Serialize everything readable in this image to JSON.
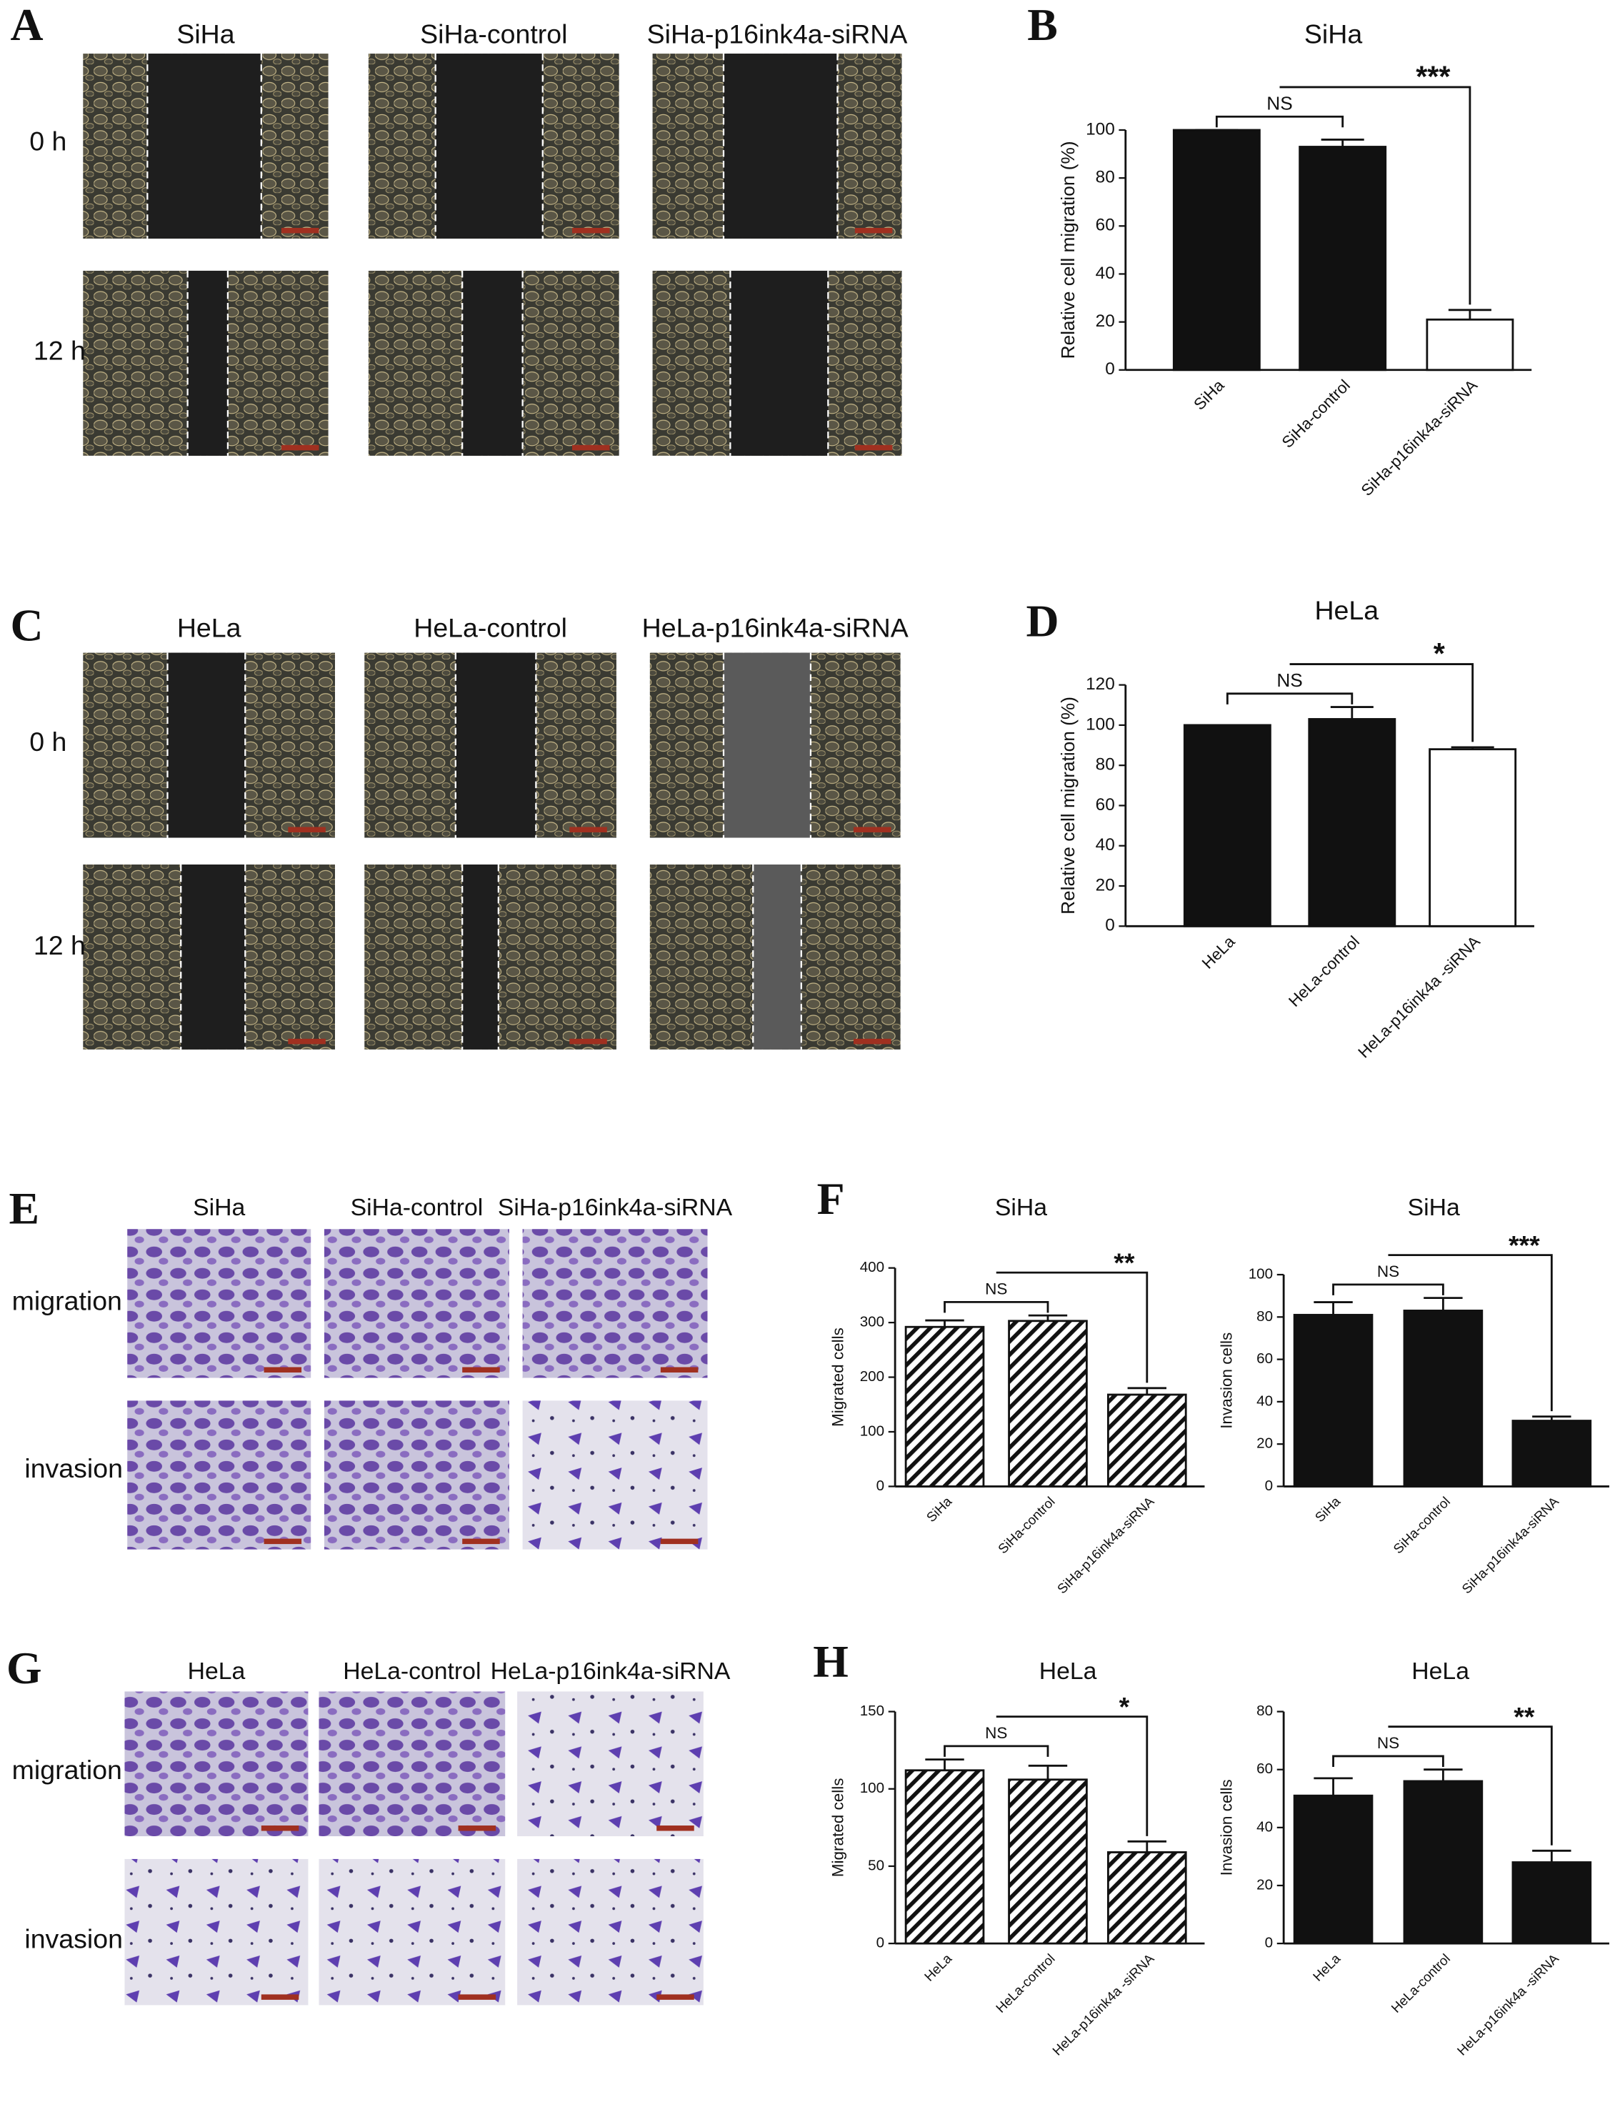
{
  "image_panels": [
    {
      "letter": "A",
      "columns": [
        "SiHa",
        "SiHa-control",
        "SiHa-p16ink4a-siRNA"
      ],
      "rows": [
        "0 h",
        "12 h"
      ]
    },
    {
      "letter": "C",
      "columns": [
        "HeLa",
        "HeLa-control",
        "HeLa-p16ink4a-siRNA"
      ],
      "rows": [
        "0 h",
        "12 h"
      ]
    },
    {
      "letter": "E",
      "columns": [
        "SiHa",
        "SiHa-control",
        "SiHa-p16ink4a-siRNA"
      ],
      "rows": [
        "migration",
        "invasion"
      ]
    },
    {
      "letter": "G",
      "columns": [
        "HeLa",
        "HeLa-control",
        "HeLa-p16ink4a-siRNA"
      ],
      "rows": [
        "migration",
        "invasion"
      ]
    }
  ],
  "chart_data": [
    {
      "type": "bar",
      "panel": "B",
      "title": "SiHa",
      "y_label": "Relative cell migration (%)",
      "categories": [
        "SiHa",
        "SiHa-control",
        "SiHa-p16ink4a-siRNA"
      ],
      "values": [
        100,
        93,
        21
      ],
      "errors": [
        0,
        3,
        4
      ],
      "colors": [
        "#111111",
        "#111111",
        "#ffffff"
      ],
      "hatched": false,
      "ylim": [
        0,
        100
      ],
      "yticks": [
        0,
        20,
        40,
        60,
        80,
        100
      ],
      "annotations": [
        "NS",
        "***"
      ]
    },
    {
      "type": "bar",
      "panel": "D",
      "title": "HeLa",
      "y_label": "Relative cell migration (%)",
      "categories": [
        "HeLa",
        "HeLa-control",
        "HeLa-p16ink4a -siRNA"
      ],
      "values": [
        100,
        103,
        88
      ],
      "errors": [
        0,
        6,
        1
      ],
      "colors": [
        "#111111",
        "#111111",
        "#ffffff"
      ],
      "hatched": false,
      "ylim": [
        0,
        120
      ],
      "yticks": [
        0,
        20,
        40,
        60,
        80,
        100,
        120
      ],
      "annotations": [
        "NS",
        "*"
      ]
    },
    {
      "type": "bar",
      "panel": "F",
      "title": "SiHa",
      "y_label": "Migrated cells",
      "categories": [
        "SiHa",
        "SiHa-control",
        "SiHa-p16ink4a-siRNA"
      ],
      "values": [
        292,
        303,
        168
      ],
      "errors": [
        12,
        10,
        12
      ],
      "colors": [
        "#ffffff",
        "#ffffff",
        "#ffffff"
      ],
      "hatched": true,
      "ylim": [
        0,
        400
      ],
      "yticks": [
        0,
        100,
        200,
        300,
        400
      ],
      "annotations": [
        "NS",
        "**"
      ]
    },
    {
      "type": "bar",
      "title": "SiHa",
      "y_label": "Invasion cells",
      "categories": [
        "SiHa",
        "SiHa-control",
        "SiHa-p16ink4a-siRNA"
      ],
      "values": [
        81,
        83,
        31
      ],
      "errors": [
        6,
        6,
        2
      ],
      "colors": [
        "#111111",
        "#111111",
        "#111111"
      ],
      "hatched": false,
      "ylim": [
        0,
        100
      ],
      "yticks": [
        0,
        20,
        40,
        60,
        80,
        100
      ],
      "annotations": [
        "NS",
        "***"
      ]
    },
    {
      "type": "bar",
      "panel": "H",
      "title": "HeLa",
      "y_label": "Migrated cells",
      "categories": [
        "HeLa",
        "HeLa-control",
        "HeLa-p16ink4a -siRNA"
      ],
      "values": [
        112,
        106,
        59
      ],
      "errors": [
        7,
        9,
        7
      ],
      "colors": [
        "#ffffff",
        "#ffffff",
        "#ffffff"
      ],
      "hatched": true,
      "ylim": [
        0,
        150
      ],
      "yticks": [
        0,
        50,
        100,
        150
      ],
      "annotations": [
        "NS",
        "*"
      ]
    },
    {
      "type": "bar",
      "title": "HeLa",
      "y_label": "Invasion cells",
      "categories": [
        "HeLa",
        "HeLa-control",
        "HeLa-p16ink4a -siRNA"
      ],
      "values": [
        51,
        56,
        28
      ],
      "errors": [
        6,
        4,
        4
      ],
      "colors": [
        "#111111",
        "#111111",
        "#111111"
      ],
      "hatched": false,
      "ylim": [
        0,
        80
      ],
      "yticks": [
        0,
        20,
        40,
        60,
        80
      ],
      "annotations": [
        "NS",
        "**"
      ]
    }
  ]
}
